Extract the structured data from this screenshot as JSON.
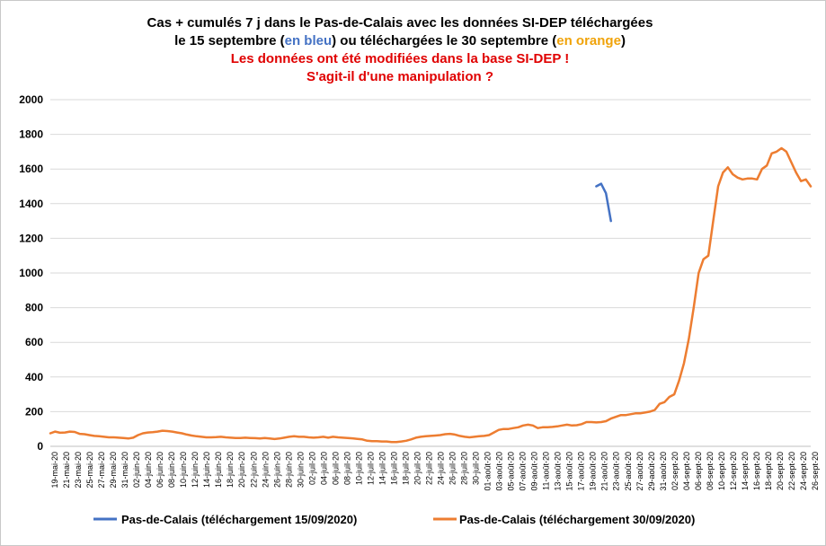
{
  "chart_data": {
    "type": "line",
    "title_lines": [
      [
        {
          "text": "Cas + cumulés 7 j dans le Pas-de-Calais avec les données SI-DEP téléchargées",
          "color": "#000000"
        }
      ],
      [
        {
          "text": "le 15 septembre (",
          "color": "#000000"
        },
        {
          "text": "en bleu",
          "color": "#4472c4"
        },
        {
          "text": ") ou téléchargées le 30 septembre (",
          "color": "#000000"
        },
        {
          "text": "en orange",
          "color": "#f0a30a"
        },
        {
          "text": ")",
          "color": "#000000"
        }
      ],
      [
        {
          "text": "Les données ont été modifiées dans la base SI-DEP !",
          "color": "#e00000"
        }
      ],
      [
        {
          "text": "S'agit-il d'une manipulation ?",
          "color": "#e00000"
        }
      ]
    ],
    "y_ticks": [
      "0",
      "200",
      "400",
      "600",
      "800",
      "1000",
      "1200",
      "1400",
      "1600",
      "1800",
      "2000"
    ],
    "ylim": [
      0,
      2000
    ],
    "grid": true,
    "legend_position": "bottom",
    "x_tick_labels": [
      "19-mai-20",
      "21-mai-20",
      "23-mai-20",
      "25-mai-20",
      "27-mai-20",
      "29-mai-20",
      "31-mai-20",
      "02-juin-20",
      "04-juin-20",
      "06-juin-20",
      "08-juin-20",
      "10-juin-20",
      "12-juin-20",
      "14-juin-20",
      "16-juin-20",
      "18-juin-20",
      "20-juin-20",
      "22-juin-20",
      "24-juin-20",
      "26-juin-20",
      "28-juin-20",
      "30-juin-20",
      "02-juil-20",
      "04-juil-20",
      "06-juil-20",
      "08-juil-20",
      "10-juil-20",
      "12-juil-20",
      "14-juil-20",
      "16-juil-20",
      "18-juil-20",
      "20-juil-20",
      "22-juil-20",
      "24-juil-20",
      "26-juil-20",
      "28-juil-20",
      "30-juil-20",
      "01-août-20",
      "03-août-20",
      "05-août-20",
      "07-août-20",
      "09-août-20",
      "11-août-20",
      "13-août-20",
      "15-août-20",
      "17-août-20",
      "19-août-20",
      "21-août-20",
      "23-août-20",
      "25-août-20",
      "27-août-20",
      "29-août-20",
      "31-août-20",
      "02-sept-20",
      "04-sept-20",
      "06-sept-20",
      "08-sept-20",
      "10-sept-20",
      "12-sept-20",
      "14-sept-20",
      "16-sept-20",
      "18-sept-20",
      "20-sept-20",
      "22-sept-20",
      "24-sept-20",
      "26-sept-20"
    ],
    "series": [
      {
        "name": "Pas-de-Calais (téléchargement 15/09/2020)",
        "color": "#4472c4",
        "start_date": "08-sept-20",
        "values": [
          1500,
          1515,
          1460,
          1300
        ]
      },
      {
        "name": "Pas-de-Calais (téléchargement 30/09/2020)",
        "color": "#ed7d31",
        "start_date": "19-mai-20",
        "values": [
          75,
          85,
          78,
          80,
          85,
          83,
          72,
          70,
          65,
          60,
          58,
          55,
          52,
          52,
          50,
          48,
          45,
          50,
          65,
          75,
          80,
          82,
          85,
          90,
          88,
          85,
          80,
          75,
          68,
          62,
          58,
          55,
          52,
          52,
          53,
          55,
          52,
          50,
          48,
          48,
          50,
          48,
          47,
          45,
          48,
          45,
          42,
          45,
          50,
          55,
          58,
          55,
          55,
          52,
          50,
          52,
          55,
          50,
          55,
          52,
          50,
          48,
          46,
          43,
          40,
          32,
          30,
          30,
          28,
          28,
          25,
          25,
          28,
          32,
          40,
          50,
          55,
          58,
          60,
          62,
          65,
          70,
          72,
          68,
          60,
          55,
          52,
          55,
          58,
          60,
          65,
          80,
          95,
          100,
          100,
          105,
          110,
          120,
          125,
          120,
          105,
          110,
          110,
          112,
          115,
          120,
          125,
          120,
          122,
          128,
          140,
          140,
          138,
          140,
          145,
          160,
          170,
          180,
          180,
          185,
          190,
          190,
          195,
          200,
          210,
          245,
          255,
          285,
          300,
          380,
          480,
          620,
          800,
          1000,
          1080,
          1100,
          1300,
          1500,
          1580,
          1610,
          1570,
          1550,
          1540,
          1545,
          1545,
          1540,
          1600,
          1620,
          1690,
          1700,
          1720,
          1700,
          1640,
          1580,
          1530,
          1540,
          1500
        ]
      }
    ]
  }
}
